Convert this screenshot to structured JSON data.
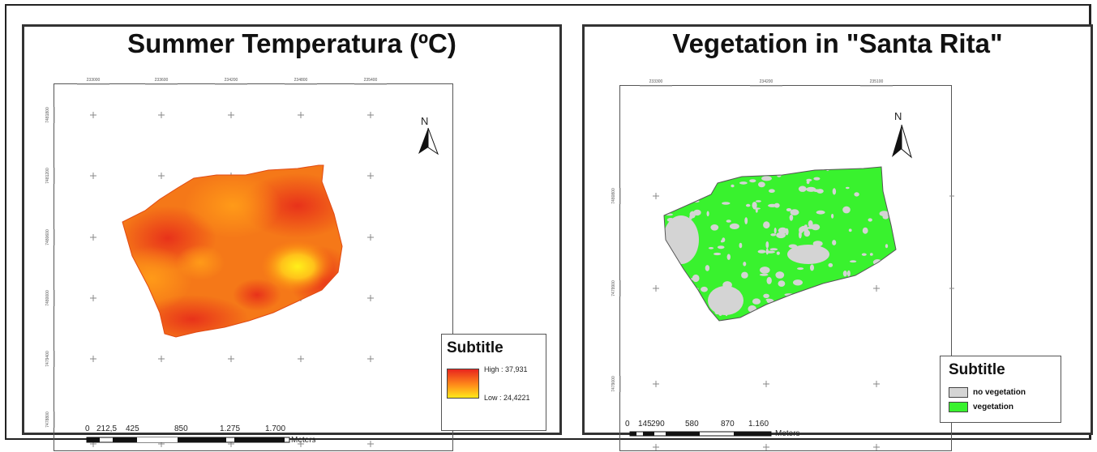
{
  "left_map": {
    "title": "Summer Temperatura (ºC)",
    "north_label": "N",
    "top_ticks": [
      "233000",
      "233600",
      "234200",
      "234800",
      "235400"
    ],
    "side_ticks": [
      "7481800",
      "7481200",
      "7480600",
      "7480000",
      "7479400",
      "7478800"
    ],
    "legend": {
      "title": "Subtitle",
      "high_label": "High : 37,931",
      "low_label": "Low : 24,4221",
      "high_color": "#e8251e",
      "low_color": "#ffe81a"
    },
    "scale": {
      "labels": [
        "0",
        "212,5",
        "425",
        "850",
        "1.275",
        "1.700"
      ],
      "unit": "Meters"
    }
  },
  "right_map": {
    "title": "Vegetation in \"Santa Rita\"",
    "north_label": "N",
    "top_ticks": [
      "233300",
      "234200",
      "235100"
    ],
    "side_ticks": [
      "7480800",
      "7479900",
      "7479000"
    ],
    "legend": {
      "title": "Subtitle",
      "items": [
        {
          "label": "no vegetation",
          "color": "#d4d4d4"
        },
        {
          "label": "vegetation",
          "color": "#39f22e"
        }
      ]
    },
    "scale": {
      "labels": [
        "0",
        "145",
        "290",
        "580",
        "870",
        "1.160"
      ],
      "unit": "Meters"
    }
  }
}
